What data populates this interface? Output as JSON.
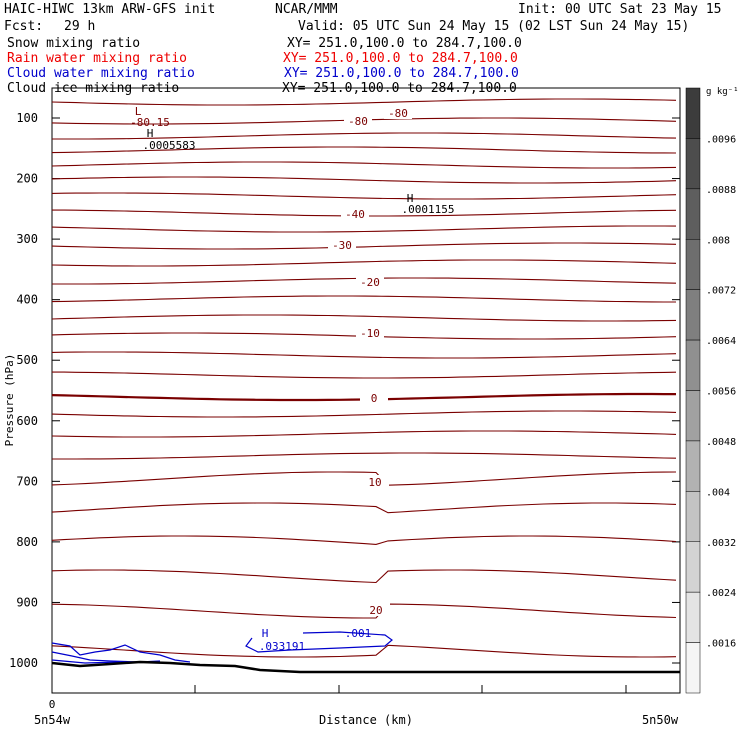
{
  "header": {
    "title_left": "HAIC-HIWC 13km ARW-GFS init",
    "title_center": "NCAR/MMM",
    "init": "Init: 00 UTC Sat 23 May 15",
    "fcst_label": "Fcst:",
    "fcst_value": "29 h",
    "valid": "Valid: 05 UTC Sun 24 May 15 (02 LST Sun 24 May 15)"
  },
  "fields": [
    {
      "name": "Snow mixing ratio",
      "xy": "XY= 251.0,100.0 to 284.7,100.0",
      "color": "#000000"
    },
    {
      "name": "Rain water mixing ratio",
      "xy": "XY= 251.0,100.0 to 284.7,100.0",
      "color": "#ee0000"
    },
    {
      "name": "Cloud water mixing ratio",
      "xy": "XY= 251.0,100.0 to 284.7,100.0",
      "color": "#0000cc"
    },
    {
      "name": "Cloud ice mixing ratio",
      "xy": "XY= 251.0,100.0 to 284.7,100.0",
      "color": "#000000"
    }
  ],
  "chart_data": {
    "type": "line",
    "title": "",
    "xlabel": "Distance (km)",
    "ylabel": "Pressure (hPa)",
    "x_ticks": [
      {
        "value": 0,
        "label": "0"
      }
    ],
    "x_endpoint_labels": {
      "left": "5n54w",
      "right": "5n50w"
    },
    "ylim": [
      1050,
      50
    ],
    "y_ticks": [
      100,
      200,
      300,
      400,
      500,
      600,
      700,
      800,
      900,
      1000
    ],
    "temperature_contours": {
      "color": "#7a0000",
      "interval_degC": 5,
      "labeled": [
        {
          "label": "-80",
          "value": -80
        },
        {
          "label": "-80",
          "value": -80
        },
        {
          "label": "-40",
          "value": -40
        },
        {
          "label": "-30",
          "value": -30
        },
        {
          "label": "-20",
          "value": -20
        },
        {
          "label": "-10",
          "value": -10
        },
        {
          "label": "0",
          "value": 0
        },
        {
          "label": "10",
          "value": 10
        },
        {
          "label": "20",
          "value": 20
        }
      ]
    },
    "annotations": [
      {
        "marker": "L",
        "label": "-80.15"
      },
      {
        "marker": "H",
        "label": ".0005583"
      },
      {
        "marker": "H",
        "label": ".0001155"
      },
      {
        "marker": "H",
        "label": ".033191"
      },
      {
        "marker": "",
        "label": ".001"
      }
    ],
    "cloud_water_contour_label": ".001",
    "colorbar": {
      "unit": "g kg⁻¹",
      "ticks": [
        ".0096",
        ".0088",
        ".008",
        ".0072",
        ".0064",
        ".0056",
        ".0048",
        ".004",
        ".0032",
        ".0024",
        ".0016"
      ]
    }
  }
}
